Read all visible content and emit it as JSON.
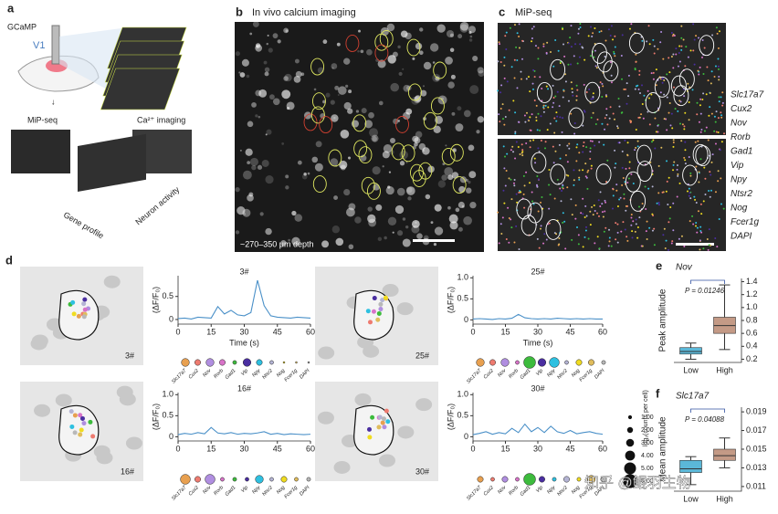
{
  "panels": {
    "a": {
      "label": "a",
      "gcamp": "GCaMP",
      "v1": "V1",
      "mipseq": "MiP-seq",
      "ca": "Ca²⁺ imaging",
      "gene_profile": "Gene profile",
      "neuron_activity": "Neuron activity"
    },
    "b": {
      "label": "b",
      "title": "In vivo calcium imaging",
      "depth": "~270–350 μm depth"
    },
    "c": {
      "label": "c",
      "title": "MiP-seq",
      "genes": [
        {
          "name": "Slc17a7",
          "color": "#e8a050"
        },
        {
          "name": "Cux2",
          "color": "#ee7b70"
        },
        {
          "name": "Nov",
          "color": "#b08ee0"
        },
        {
          "name": "Rorb",
          "color": "#d873c8"
        },
        {
          "name": "Gad1",
          "color": "#3dbb3d"
        },
        {
          "name": "Vip",
          "color": "#4a2ea0"
        },
        {
          "name": "Npy",
          "color": "#2ec0e0"
        },
        {
          "name": "Ntsr2",
          "color": "#b4b4d4"
        },
        {
          "name": "Nog",
          "color": "#f0dc20"
        },
        {
          "name": "Fcer1g",
          "color": "#e0bc5c"
        },
        {
          "name": "DAPI",
          "color": "#b8b8b8"
        }
      ]
    },
    "d": {
      "label": "d",
      "size_title": "log₂(counts per cell)",
      "sizes": [
        {
          "value": 1,
          "label": "1.00"
        },
        {
          "value": 2,
          "label": "2.00"
        },
        {
          "value": 3,
          "label": "3.00"
        },
        {
          "value": 4,
          "label": "4.00"
        },
        {
          "value": 5,
          "label": "5.00"
        },
        {
          "value": 6,
          "label": "6.00"
        }
      ]
    },
    "e": {
      "label": "e"
    },
    "f": {
      "label": "f"
    }
  },
  "chart_data": [
    {
      "type": "line",
      "title": "3#",
      "xlabel": "Time (s)",
      "ylabel": "(ΔF/F₀)",
      "x": [
        0,
        3,
        6,
        9,
        12,
        15,
        18,
        21,
        24,
        27,
        30,
        33,
        36,
        39,
        42,
        45,
        48,
        51,
        54,
        57,
        60
      ],
      "series": [
        {
          "color": "#4a90c8",
          "values": [
            0.02,
            0.03,
            0.01,
            0.05,
            0.04,
            0.03,
            0.28,
            0.12,
            0.2,
            0.1,
            0.08,
            0.15,
            0.85,
            0.3,
            0.08,
            0.05,
            0.04,
            0.03,
            0.05,
            0.04,
            0.03
          ]
        }
      ],
      "xlim": [
        0,
        60
      ],
      "xticks": [
        0,
        15,
        30,
        45,
        60
      ],
      "ylim": [
        -0.1,
        0.95
      ],
      "yticks": [
        0,
        0.5
      ],
      "gene_counts": [
        3,
        2,
        3,
        2,
        1,
        3,
        2,
        1,
        0,
        0,
        0
      ]
    },
    {
      "type": "line",
      "title": "25#",
      "xlabel": "Time (s)",
      "ylabel": "(ΔF/F₀)",
      "x": [
        0,
        3,
        6,
        9,
        12,
        15,
        18,
        21,
        24,
        27,
        30,
        33,
        36,
        39,
        42,
        45,
        48,
        51,
        54,
        57,
        60
      ],
      "series": [
        {
          "color": "#4a90c8",
          "values": [
            0.02,
            0.03,
            0.02,
            0.01,
            0.03,
            0.02,
            0.04,
            0.13,
            0.05,
            0.03,
            0.02,
            0.03,
            0.02,
            0.04,
            0.03,
            0.02,
            0.03,
            0.02,
            0.03,
            0.02,
            0.02
          ]
        }
      ],
      "xlim": [
        0,
        60
      ],
      "xticks": [
        0,
        15,
        30,
        45,
        60
      ],
      "ylim": [
        -0.1,
        1.05
      ],
      "yticks": [
        0,
        0.5,
        {
          "value": 1,
          "label": "1.0"
        }
      ],
      "gene_counts": [
        3,
        2,
        3,
        1,
        5,
        3,
        4,
        1,
        2,
        2,
        1
      ]
    },
    {
      "type": "line",
      "title": "16#",
      "ylabel": "(ΔF/F₀)",
      "x": [
        0,
        3,
        6,
        9,
        12,
        15,
        18,
        21,
        24,
        27,
        30,
        33,
        36,
        39,
        42,
        45,
        48,
        51,
        54,
        57,
        60
      ],
      "series": [
        {
          "color": "#4a90c8",
          "values": [
            0.05,
            0.08,
            0.06,
            0.1,
            0.07,
            0.22,
            0.09,
            0.07,
            0.1,
            0.06,
            0.08,
            0.07,
            0.09,
            0.12,
            0.06,
            0.08,
            0.05,
            0.07,
            0.06,
            0.05,
            0.06
          ]
        }
      ],
      "xlim": [
        0,
        60
      ],
      "xticks": [
        0,
        15,
        30,
        45,
        60
      ],
      "ylim": [
        -0.1,
        1.05
      ],
      "yticks": [
        0,
        0.5,
        {
          "value": 1,
          "label": "1.0"
        }
      ],
      "gene_counts": [
        4,
        2,
        4,
        1,
        1,
        1,
        3,
        1,
        2,
        1,
        1
      ]
    },
    {
      "type": "line",
      "title": "30#",
      "ylabel": "(ΔF/F₀)",
      "x": [
        0,
        3,
        6,
        9,
        12,
        15,
        18,
        21,
        24,
        27,
        30,
        33,
        36,
        39,
        42,
        45,
        48,
        51,
        54,
        57,
        60
      ],
      "series": [
        {
          "color": "#4a90c8",
          "values": [
            0.05,
            0.08,
            0.12,
            0.06,
            0.1,
            0.07,
            0.2,
            0.1,
            0.3,
            0.12,
            0.22,
            0.1,
            0.25,
            0.12,
            0.08,
            0.15,
            0.07,
            0.1,
            0.12,
            0.08,
            0.06
          ]
        }
      ],
      "xlim": [
        0,
        60
      ],
      "xticks": [
        0,
        15,
        30,
        45,
        60
      ],
      "ylim": [
        -0.1,
        1.05
      ],
      "yticks": [
        0,
        0.5,
        {
          "value": 1,
          "label": "1.0"
        }
      ],
      "gene_counts": [
        2,
        1,
        2,
        1,
        5,
        2,
        1,
        2,
        1,
        3,
        2
      ]
    },
    {
      "type": "box",
      "title": "Nov",
      "ylabel": "Peak amplitude",
      "annotation": "P = 0.01246",
      "categories": [
        "Low",
        "High"
      ],
      "boxes": [
        {
          "min": 0.2,
          "q1": 0.28,
          "median": 0.32,
          "q3": 0.38,
          "max": 0.45,
          "color": "#5bb8d8"
        },
        {
          "min": 0.35,
          "q1": 0.6,
          "median": 0.72,
          "q3": 0.85,
          "max": 1.35,
          "color": "#c49a86"
        }
      ],
      "ylim": [
        0.15,
        1.45
      ],
      "yticks": [
        0.2,
        0.4,
        0.6,
        0.8,
        {
          "value": 1,
          "label": "1.0"
        },
        1.2,
        1.4
      ]
    },
    {
      "type": "box",
      "title": "Slc17a7",
      "ylabel": "Mean amplitude",
      "annotation": "P = 0.04088",
      "categories": [
        "Low",
        "High"
      ],
      "boxes": [
        {
          "min": 0.0112,
          "q1": 0.0125,
          "median": 0.0129,
          "q3": 0.0138,
          "max": 0.0142,
          "color": "#5bb8d8"
        },
        {
          "min": 0.013,
          "q1": 0.0138,
          "median": 0.0143,
          "q3": 0.015,
          "max": 0.0162,
          "color": "#c49a86"
        }
      ],
      "ylim": [
        0.0105,
        0.0195
      ],
      "yticks": [
        0.011,
        0.013,
        0.015,
        0.017,
        0.019
      ]
    }
  ],
  "watermark": "知乎 @鲲羽生物"
}
